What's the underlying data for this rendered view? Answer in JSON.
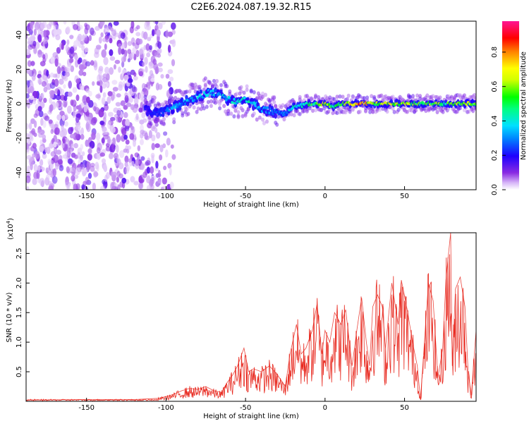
{
  "title": "C2E6.2024.087.19.32.R15",
  "colors": {
    "snr_line": "#e8281e",
    "background": "#ffffff",
    "axis": "#000000"
  },
  "chart_data": [
    {
      "type": "heatmap",
      "xlabel": "Height of straight line (km)",
      "ylabel": "Frequency (Hz)",
      "xlim": [
        -188,
        95
      ],
      "ylim": [
        -50,
        48
      ],
      "x_ticks": [
        "-150",
        "-100",
        "-50",
        "0",
        "50"
      ],
      "x_tick_values": [
        -150,
        -100,
        -50,
        0,
        50
      ],
      "y_ticks": [
        "40",
        "20",
        "0",
        "-20",
        "-40"
      ],
      "y_tick_values": [
        40,
        20,
        0,
        -20,
        -40
      ],
      "colorbar": {
        "label": "Normalized spectral amplitude",
        "range": [
          0,
          0.98
        ],
        "ticks": [
          "0.0",
          "0.2",
          "0.4",
          "0.6",
          "0.8"
        ],
        "tick_values": [
          0,
          0.2,
          0.4,
          0.6,
          0.8
        ]
      },
      "noise_region_x": [
        -188,
        -103
      ],
      "signal_start_x": -113,
      "ridge": {
        "x": [
          -113,
          -105,
          -100,
          -95,
          -88,
          -80,
          -72,
          -67,
          -60,
          -55,
          -50,
          -45,
          -40,
          -35,
          -30,
          -25,
          -20,
          -15,
          -10,
          -5,
          0,
          5,
          10,
          15,
          20,
          25,
          30,
          35,
          40,
          45,
          50,
          55,
          60,
          65,
          70,
          75,
          80,
          85,
          90,
          95
        ],
        "frequency": [
          -4,
          -6,
          -4,
          -2,
          1,
          4,
          7,
          6,
          2,
          1,
          2,
          0,
          -3,
          -4,
          -5,
          -6,
          -2,
          -1,
          0,
          0,
          0,
          -2,
          0,
          0,
          0,
          0,
          0,
          0,
          0,
          0,
          0,
          0,
          0,
          0,
          0,
          0,
          0,
          0,
          0,
          0
        ],
        "amplitude": [
          0.22,
          0.25,
          0.3,
          0.35,
          0.38,
          0.4,
          0.42,
          0.4,
          0.42,
          0.45,
          0.48,
          0.44,
          0.35,
          0.36,
          0.33,
          0.36,
          0.45,
          0.5,
          0.55,
          0.65,
          0.78,
          0.55,
          0.6,
          0.7,
          0.88,
          0.85,
          0.7,
          0.72,
          0.75,
          0.7,
          0.72,
          0.65,
          0.6,
          0.62,
          0.65,
          0.6,
          0.62,
          0.65,
          0.7,
          0.6
        ]
      }
    },
    {
      "type": "line",
      "xlabel": "Height of straight line (km)",
      "ylabel": "SNR (10 * v/v)",
      "scale_label": "(x10",
      "scale_exp": "4",
      "scale_close": ")",
      "xlim": [
        -188,
        95
      ],
      "ylim": [
        0,
        2.85
      ],
      "x_ticks": [
        "-150",
        "-100",
        "-50",
        "0",
        "50"
      ],
      "x_tick_values": [
        -150,
        -100,
        -50,
        0,
        50
      ],
      "y_ticks": [
        "0.5",
        "1.0",
        "1.5",
        "2.0",
        "2.5"
      ],
      "y_tick_values": [
        0.5,
        1.0,
        1.5,
        2.0,
        2.5
      ],
      "series": [
        {
          "x": [
            -188,
            -150,
            -120,
            -105,
            -100,
            -95,
            -90,
            -85,
            -80,
            -75,
            -70,
            -65,
            -62,
            -58,
            -55,
            -51,
            -48,
            -45,
            -40,
            -35,
            -30,
            -25,
            -22,
            -18,
            -15,
            -12,
            -8,
            -5,
            -2,
            0,
            3,
            6,
            10,
            13,
            17,
            20,
            23,
            26,
            28,
            30,
            33,
            36,
            38,
            42,
            46,
            48,
            52,
            55,
            58,
            60,
            62,
            65,
            68,
            71,
            74,
            76,
            79,
            80,
            82,
            85,
            88,
            90,
            92,
            95
          ],
          "y": [
            0.02,
            0.03,
            0.03,
            0.05,
            0.08,
            0.12,
            0.18,
            0.22,
            0.2,
            0.25,
            0.18,
            0.15,
            0.3,
            0.45,
            0.6,
            0.9,
            0.5,
            0.55,
            0.5,
            0.6,
            0.45,
            0.25,
            0.8,
            1.3,
            0.8,
            0.9,
            1.2,
            1.65,
            0.8,
            1.2,
            1.0,
            1.5,
            1.3,
            1.55,
            0.6,
            1.2,
            1.75,
            1.0,
            0.6,
            1.6,
            1.8,
            1.6,
            0.9,
            2.0,
            1.3,
            2.05,
            1.5,
            1.0,
            0.6,
            0.03,
            0.8,
            2.0,
            1.7,
            0.4,
            0.9,
            2.05,
            2.85,
            0.6,
            1.9,
            2.1,
            1.6,
            0.5,
            0.1,
            1.2
          ]
        }
      ]
    }
  ]
}
